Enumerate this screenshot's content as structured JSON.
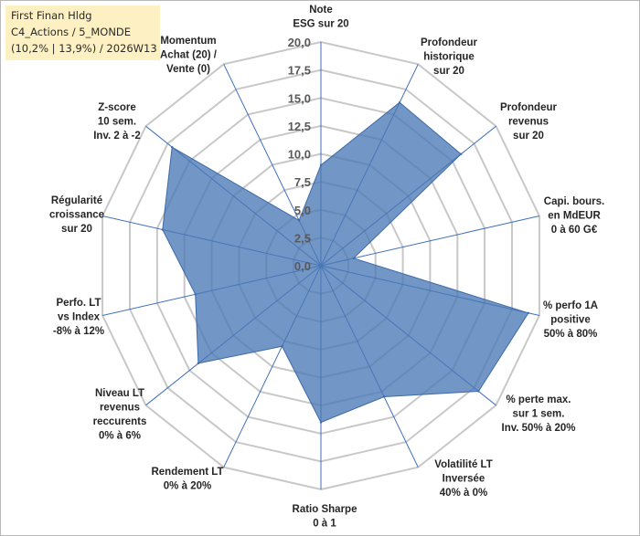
{
  "title_box": {
    "line1": "First Finan Hldg",
    "line2": "C4_Actions / 5_MONDE",
    "line3": "(10,2% | 13,9%) / 2026W13"
  },
  "chart_data": {
    "type": "radar",
    "rmin": 0,
    "rmax": 20,
    "tick_values": [
      0,
      2.5,
      5,
      7.5,
      10,
      12.5,
      15,
      17.5,
      20
    ],
    "tick_labels": [
      "0,0",
      "2,5",
      "5,0",
      "7,5",
      "10,0",
      "12,5",
      "15,0",
      "17,5",
      "20,0"
    ],
    "grid": true,
    "colors": {
      "fill": "#4a78b5",
      "fill_opacity": 0.78,
      "stroke": "#3d6aa8",
      "grid": "#c8c8c8",
      "spoke": "#3f6fbf"
    },
    "axes": [
      {
        "label": [
          "Note",
          "ESG sur 20"
        ],
        "value": 9.0
      },
      {
        "label": [
          "Profondeur",
          "historique",
          "sur 20"
        ],
        "value": 16.2
      },
      {
        "label": [
          "Profondeur",
          "revenus",
          "sur 20"
        ],
        "value": 16.0
      },
      {
        "label": [
          "Capi. bours.",
          "en MdEUR",
          "0 à 60 G€"
        ],
        "value": 3.0
      },
      {
        "label": [
          "% perfo 1A",
          "positive",
          "50% à 80%"
        ],
        "value": 19.0
      },
      {
        "label": [
          "% perte max.",
          "sur 1 sem.",
          "Inv. 50% à 20%"
        ],
        "value": 18.0
      },
      {
        "label": [
          "Volatilité LT",
          "Inversée",
          "40% à 0%"
        ],
        "value": 13.0
      },
      {
        "label": [
          "Ratio Sharpe",
          "0 à 1"
        ],
        "value": 14.0
      },
      {
        "label": [
          "Rendement LT",
          "0% à 20%"
        ],
        "value": 8.0
      },
      {
        "label": [
          "Niveau LT",
          "revenus",
          "reccurents",
          "0% à 6%"
        ],
        "value": 14.0
      },
      {
        "label": [
          "Perfo. LT",
          "vs Index",
          "-8% à 12%"
        ],
        "value": 11.5
      },
      {
        "label": [
          "Régularité",
          "croissance",
          "sur 20"
        ],
        "value": 14.5
      },
      {
        "label": [
          "Z-score",
          "10 sem.",
          "Inv. 2 à -2"
        ],
        "value": 17.0
      },
      {
        "label": [
          "Momentum",
          "Achat (20) /",
          "Vente (0)"
        ],
        "value": 4.5
      }
    ]
  }
}
